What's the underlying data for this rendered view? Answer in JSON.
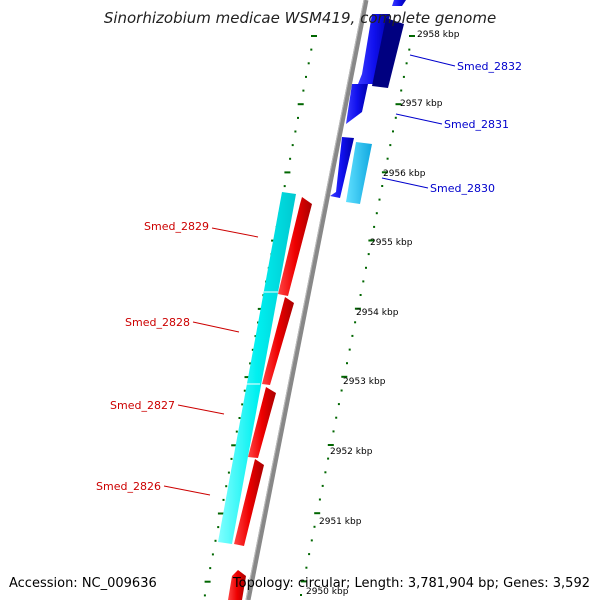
{
  "title": "Sinorhizobium medicae WSM419, complete genome",
  "accession": "Accession: NC_009636",
  "topology": "Topology: circular; Length: 3,781,904 bp; Genes: 3,592",
  "ticks": [
    {
      "label": "2958 kbp"
    },
    {
      "label": "2957 kbp"
    },
    {
      "label": "2956 kbp"
    },
    {
      "label": "2955 kbp"
    },
    {
      "label": "2954 kbp"
    },
    {
      "label": "2953 kbp"
    },
    {
      "label": "2952 kbp"
    },
    {
      "label": "2951 kbp"
    },
    {
      "label": "2950 kbp"
    }
  ],
  "genes": [
    {
      "label": "Smed_2832",
      "strand": "forward",
      "color": "#0000cc"
    },
    {
      "label": "Smed_2831",
      "strand": "forward",
      "color": "#0000cc"
    },
    {
      "label": "Smed_2830",
      "strand": "forward",
      "color": "#0000cc"
    },
    {
      "label": "Smed_2829",
      "strand": "reverse",
      "color": "#cc0000"
    },
    {
      "label": "Smed_2828",
      "strand": "reverse",
      "color": "#cc0000"
    },
    {
      "label": "Smed_2827",
      "strand": "reverse",
      "color": "#cc0000"
    },
    {
      "label": "Smed_2826",
      "strand": "reverse",
      "color": "#cc0000"
    }
  ],
  "colors": {
    "forward_cds": "#1010ee",
    "reverse_cds": "#ee0000",
    "forward_cds_dark": "#000080",
    "cyan_feature": "#00ffff",
    "light_blue_feature": "#1ec8ff",
    "backbone": "#888888",
    "tick_marks": "#006600"
  }
}
